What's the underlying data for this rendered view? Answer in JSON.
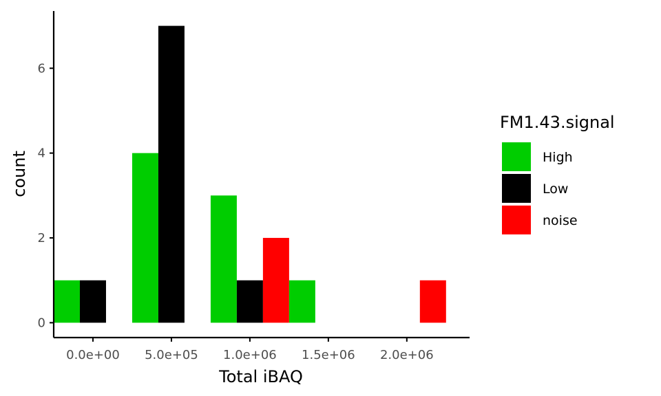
{
  "chart_data": {
    "type": "bar",
    "subtype": "dodged-histogram",
    "title": "",
    "xlabel": "Total iBAQ",
    "ylabel": "count",
    "xlim": [
      -250000,
      2400000
    ],
    "ylim": [
      -0.35,
      7.35
    ],
    "x_ticks": [
      {
        "value": 0,
        "label": "0.0e+00"
      },
      {
        "value": 500000,
        "label": "5.0e+05"
      },
      {
        "value": 1000000,
        "label": "1.0e+06"
      },
      {
        "value": 1500000,
        "label": "1.5e+06"
      },
      {
        "value": 2000000,
        "label": "2.0e+06"
      }
    ],
    "y_ticks": [
      {
        "value": 0,
        "label": "0"
      },
      {
        "value": 2,
        "label": "2"
      },
      {
        "value": 4,
        "label": "4"
      },
      {
        "value": 6,
        "label": "6"
      }
    ],
    "bin_width": 500000,
    "grid": false,
    "legend": {
      "title": "FM1.43.signal",
      "position": "right",
      "entries": [
        {
          "name": "High",
          "color": "#00cd00"
        },
        {
          "name": "Low",
          "color": "#000000"
        },
        {
          "name": "noise",
          "color": "#ff0000"
        }
      ]
    },
    "bars": [
      {
        "group": "High",
        "x_start": -250000,
        "x_end": -83333,
        "count": 1
      },
      {
        "group": "Low",
        "x_start": -83333,
        "x_end": 83333,
        "count": 1
      },
      {
        "group": "High",
        "x_start": 250000,
        "x_end": 416667,
        "count": 4
      },
      {
        "group": "Low",
        "x_start": 416667,
        "x_end": 583333,
        "count": 7
      },
      {
        "group": "High",
        "x_start": 750000,
        "x_end": 916667,
        "count": 3
      },
      {
        "group": "Low",
        "x_start": 916667,
        "x_end": 1083333,
        "count": 1
      },
      {
        "group": "noise",
        "x_start": 1083333,
        "x_end": 1250000,
        "count": 2
      },
      {
        "group": "High",
        "x_start": 1250000,
        "x_end": 1416667,
        "count": 1
      },
      {
        "group": "noise",
        "x_start": 2083333,
        "x_end": 2250000,
        "count": 1
      }
    ]
  }
}
